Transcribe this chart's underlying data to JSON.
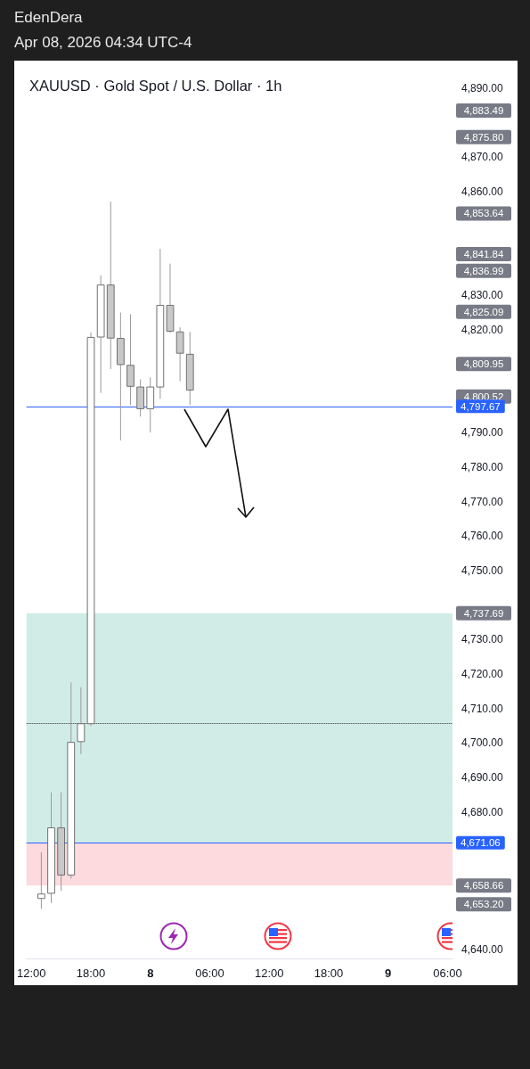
{
  "chart_data": {
    "type": "candlestick",
    "title": "XAUUSD · Gold Spot / U.S. Dollar · 1h",
    "annotations": [
      "EdenDera",
      "Apr 08, 2026 04:34 UTC-4",
      "4,883.49",
      "4,875.80",
      "4,853.64",
      "4,841.84",
      "4,836.99",
      "4,825.09",
      "4,809.95",
      "4,800.52",
      "4,737.69",
      "4,658.66",
      "4,653.20"
    ],
    "x": [
      "2026-04-07T13:00",
      "2026-04-07T14:00",
      "2026-04-07T15:00",
      "2026-04-07T16:00",
      "2026-04-07T17:00",
      "2026-04-07T18:00",
      "2026-04-07T19:00",
      "2026-04-07T20:00",
      "2026-04-07T21:00",
      "2026-04-07T22:00",
      "2026-04-07T23:00",
      "2026-04-08T00:00",
      "2026-04-08T01:00",
      "2026-04-08T02:00",
      "2026-04-08T03:00",
      "2026-04-08T04:00"
    ],
    "ohlc": [
      [
        4654.9,
        4668.3,
        4651.9,
        4656.2
      ],
      [
        4656.4,
        4685.7,
        4653.6,
        4675.4
      ],
      [
        4675.4,
        4685.7,
        4657.1,
        4661.7
      ],
      [
        4661.7,
        4717.6,
        4660.7,
        4700.2
      ],
      [
        4700.4,
        4716.2,
        4696.8,
        4705.6
      ],
      [
        4705.6,
        4819.1,
        4705.0,
        4817.7
      ],
      [
        4817.8,
        4835.7,
        4801.6,
        4832.9
      ],
      [
        4832.9,
        4857.1,
        4808.5,
        4817.5
      ],
      [
        4817.4,
        4824.9,
        4787.8,
        4809.8
      ],
      [
        4809.6,
        4824.4,
        4798.1,
        4803.5
      ],
      [
        4803.3,
        4805.5,
        4794.7,
        4797.0
      ],
      [
        4797.0,
        4806.1,
        4790.1,
        4803.3
      ],
      [
        4803.3,
        4843.4,
        4799.9,
        4827.0
      ],
      [
        4827.0,
        4839.1,
        4819.0,
        4819.5
      ],
      [
        4819.3,
        4820.6,
        4805.0,
        4813.1
      ],
      [
        4812.8,
        4819.3,
        4798.1,
        4802.4
      ]
    ],
    "xlim": [
      "2026-04-07T11:30",
      "2026-04-09T06:30"
    ],
    "xticks": [
      {
        "value": "2026-04-07T12:00",
        "label": "12:00"
      },
      {
        "value": "2026-04-07T18:00",
        "label": "18:00"
      },
      {
        "value": "2026-04-08T00:00",
        "label": "8"
      },
      {
        "value": "2026-04-08T06:00",
        "label": "06:00"
      },
      {
        "value": "2026-04-08T12:00",
        "label": "12:00"
      },
      {
        "value": "2026-04-08T18:00",
        "label": "18:00"
      },
      {
        "value": "2026-04-09T00:00",
        "label": "9"
      },
      {
        "value": "2026-04-09T06:00",
        "label": "06:00"
      }
    ],
    "ylim": [
      4637.5,
      4898
    ],
    "yticks": [
      {
        "value": 4640,
        "label": "4,640.00"
      },
      {
        "value": 4680,
        "label": "4,680.00"
      },
      {
        "value": 4690,
        "label": "4,690.00"
      },
      {
        "value": 4700,
        "label": "4,700.00"
      },
      {
        "value": 4710,
        "label": "4,710.00"
      },
      {
        "value": 4720,
        "label": "4,720.00"
      },
      {
        "value": 4730,
        "label": "4,730.00"
      },
      {
        "value": 4750,
        "label": "4,750.00"
      },
      {
        "value": 4760,
        "label": "4,760.00"
      },
      {
        "value": 4770,
        "label": "4,770.00"
      },
      {
        "value": 4780,
        "label": "4,780.00"
      },
      {
        "value": 4790,
        "label": "4,790.00"
      },
      {
        "value": 4820,
        "label": "4,820.00"
      },
      {
        "value": 4830,
        "label": "4,830.00"
      },
      {
        "value": 4860,
        "label": "4,860.00"
      },
      {
        "value": 4870,
        "label": "4,870.00"
      },
      {
        "value": 4890,
        "label": "4,890.00"
      }
    ],
    "ref_lines": [
      {
        "axis": "y",
        "value": 4797.67,
        "label": "4,797.67",
        "color": "#2962ff",
        "line_style": "solid"
      },
      {
        "axis": "y",
        "value": 4705.6,
        "label": null,
        "color": "#333333",
        "line_style": "dotted"
      },
      {
        "axis": "y",
        "value": 4671.06,
        "label": "4,671.06",
        "color": "#2962ff",
        "line_style": "solid"
      }
    ],
    "bands": [
      {
        "axis": "y",
        "from": 4671.06,
        "to": 4737.69,
        "color": "#d1ece7"
      },
      {
        "axis": "y",
        "from": 4658.66,
        "to": 4671.06,
        "color": "#fcdadd"
      }
    ],
    "grid": false
  }
}
